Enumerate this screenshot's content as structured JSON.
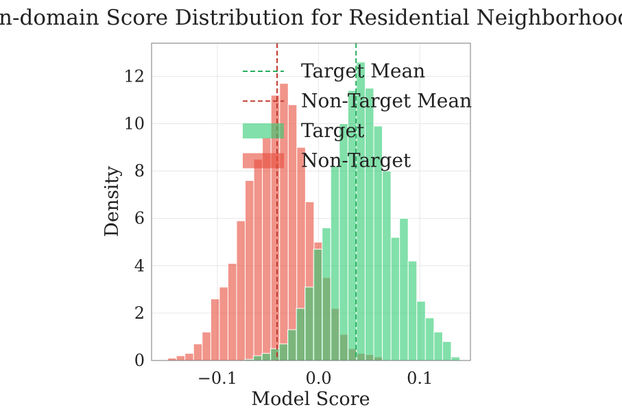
{
  "chart_data": {
    "type": "histogram",
    "title": "In-domain Score Distribution for Residential Neighborhood",
    "xlabel": "Model Score",
    "ylabel": "Density",
    "xlim": [
      -0.165,
      0.15
    ],
    "ylim": [
      0,
      13.4
    ],
    "xticks": [
      -0.1,
      0.0,
      0.1
    ],
    "xtick_labels": [
      "−0.1",
      "0.0",
      "0.1"
    ],
    "yticks": [
      0,
      2,
      4,
      6,
      8,
      10,
      12
    ],
    "ytick_labels": [
      "0",
      "2",
      "4",
      "6",
      "8",
      "10",
      "12"
    ],
    "grid": true,
    "legend_position": "top-right",
    "legend": [
      "Target Mean",
      "Non-Target Mean",
      "Target",
      "Non-Target"
    ],
    "colors": {
      "target": "#2ecc71",
      "non_target": "#e74c3c",
      "target_mean": "#27ae60",
      "non_target_mean": "#c0392b",
      "grid": "#e6e6e6",
      "axes": "#555555"
    },
    "series": [
      {
        "name": "Target",
        "bin_width": 0.0085,
        "bins_start": [
          -0.073,
          -0.0645,
          -0.056,
          -0.0475,
          -0.039,
          -0.0305,
          -0.022,
          -0.0135,
          -0.005,
          0.0035,
          0.012,
          0.0205,
          0.029,
          0.0375,
          0.046,
          0.0545,
          0.063,
          0.0715,
          0.08,
          0.0885,
          0.097,
          0.1055,
          0.114,
          0.1225,
          0.131
        ],
        "values": [
          0.05,
          0.2,
          0.3,
          0.5,
          0.7,
          1.3,
          2.2,
          3.1,
          4.7,
          5.6,
          8.2,
          10.0,
          11.4,
          12.6,
          11.5,
          9.9,
          8.0,
          5.2,
          6.0,
          4.2,
          2.5,
          1.8,
          1.2,
          0.8,
          0.15
        ],
        "mean": 0.037
      },
      {
        "name": "Non-Target",
        "bin_width": 0.0085,
        "bins_start": [
          -0.149,
          -0.1405,
          -0.132,
          -0.1235,
          -0.115,
          -0.1065,
          -0.098,
          -0.0895,
          -0.081,
          -0.0725,
          -0.064,
          -0.0555,
          -0.047,
          -0.0385,
          -0.03,
          -0.0215,
          -0.013,
          -0.0045,
          0.004,
          0.0125,
          0.021,
          0.0295,
          0.038,
          0.0465,
          0.055
        ],
        "values": [
          0.1,
          0.2,
          0.3,
          0.7,
          1.2,
          2.6,
          3.1,
          4.1,
          5.9,
          7.6,
          8.5,
          9.4,
          11.2,
          11.7,
          10.8,
          9.0,
          6.7,
          5.0,
          3.5,
          2.2,
          1.1,
          0.5,
          0.3,
          0.25,
          0.15
        ],
        "mean": -0.041
      }
    ]
  }
}
